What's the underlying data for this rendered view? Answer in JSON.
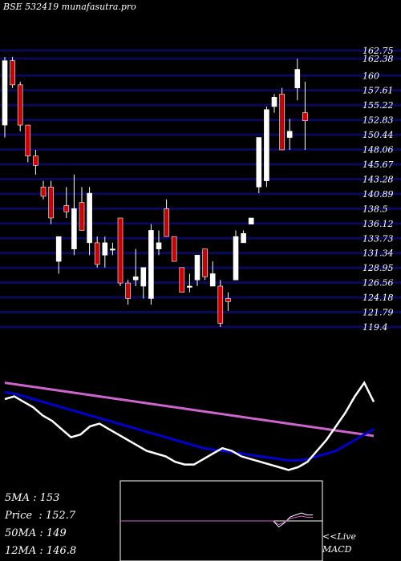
{
  "title": "BSE 532419 munafasutra.pro",
  "stats": [
    {
      "label": "5MA",
      "value": "153"
    },
    {
      "label": "Price",
      "value": "152.7"
    },
    {
      "label": "50MA",
      "value": "149"
    },
    {
      "label": "12MA",
      "value": "146.8"
    }
  ],
  "macd_label": "<<Live",
  "macd_sub": "MACD",
  "colors": {
    "up": "#ffffff",
    "down": "#cc0000",
    "grid": "#0a0a5a",
    "ma_long": "#cc66cc",
    "ma_mid": "#0000cc",
    "ma_short": "#ffffff"
  },
  "chart_data": {
    "type": "candlestick",
    "y_ticks": [
      "162.75",
      "162.38",
      "160",
      "157.61",
      "155.22",
      "152.83",
      "150.44",
      "148.06",
      "145.67",
      "143.28",
      "140.89",
      "138.5",
      "136.12",
      "133.73",
      "131.34",
      "128.95",
      "126.56",
      "124.18",
      "121.79",
      "119.4"
    ],
    "ylim": [
      119.4,
      162.75
    ],
    "candles": [
      {
        "o": 152,
        "h": 163,
        "l": 150,
        "c": 162.4
      },
      {
        "o": 162.4,
        "h": 163,
        "l": 158,
        "c": 158.5
      },
      {
        "o": 158.5,
        "h": 159,
        "l": 151,
        "c": 152
      },
      {
        "o": 152,
        "h": 152,
        "l": 146,
        "c": 147
      },
      {
        "o": 147,
        "h": 148,
        "l": 144,
        "c": 145.5
      },
      {
        "o": 142,
        "h": 143,
        "l": 140,
        "c": 140.5
      },
      {
        "o": 142,
        "h": 143,
        "l": 136,
        "c": 137
      },
      {
        "o": 130,
        "h": 134,
        "l": 128,
        "c": 134
      },
      {
        "o": 139,
        "h": 142,
        "l": 137,
        "c": 138
      },
      {
        "o": 132,
        "h": 144,
        "l": 131,
        "c": 138.5
      },
      {
        "o": 139.5,
        "h": 142,
        "l": 135,
        "c": 135
      },
      {
        "o": 133,
        "h": 142,
        "l": 131,
        "c": 141
      },
      {
        "o": 133,
        "h": 134,
        "l": 129,
        "c": 129.5
      },
      {
        "o": 131,
        "h": 134,
        "l": 129,
        "c": 133
      },
      {
        "o": 132,
        "h": 133,
        "l": 131,
        "c": 132
      },
      {
        "o": 137,
        "h": 137,
        "l": 126,
        "c": 126.5
      },
      {
        "o": 126.5,
        "h": 127,
        "l": 123,
        "c": 124
      },
      {
        "o": 127,
        "h": 132,
        "l": 126,
        "c": 127.5
      },
      {
        "o": 126,
        "h": 129,
        "l": 124,
        "c": 129
      },
      {
        "o": 124,
        "h": 136,
        "l": 123,
        "c": 135
      },
      {
        "o": 132,
        "h": 135,
        "l": 131,
        "c": 133
      },
      {
        "o": 138.5,
        "h": 140,
        "l": 134,
        "c": 134
      },
      {
        "o": 134,
        "h": 134,
        "l": 130,
        "c": 130
      },
      {
        "o": 129,
        "h": 129,
        "l": 125,
        "c": 125
      },
      {
        "o": 126,
        "h": 128,
        "l": 125,
        "c": 126
      },
      {
        "o": 127,
        "h": 131,
        "l": 126,
        "c": 131
      },
      {
        "o": 132,
        "h": 132,
        "l": 127,
        "c": 127.5
      },
      {
        "o": 126,
        "h": 130,
        "l": 126,
        "c": 128
      },
      {
        "o": 126,
        "h": 127,
        "l": 119.4,
        "c": 120
      },
      {
        "o": 124,
        "h": 125,
        "l": 122,
        "c": 123.5
      },
      {
        "o": 127,
        "h": 135,
        "l": 127,
        "c": 134
      },
      {
        "o": 133,
        "h": 135,
        "l": 133,
        "c": 134.5
      },
      {
        "o": 136,
        "h": 137,
        "l": 136,
        "c": 137
      },
      {
        "o": 142,
        "h": 150,
        "l": 141,
        "c": 150
      },
      {
        "o": 143,
        "h": 155,
        "l": 142,
        "c": 154.5
      },
      {
        "o": 155,
        "h": 157,
        "l": 154,
        "c": 156.5
      },
      {
        "o": 157,
        "h": 158,
        "l": 148,
        "c": 148
      },
      {
        "o": 150,
        "h": 153,
        "l": 148,
        "c": 151
      },
      {
        "o": 158,
        "h": 162.7,
        "l": 156,
        "c": 161
      },
      {
        "o": 154,
        "h": 159,
        "l": 148,
        "c": 152.7
      }
    ],
    "indicators": {
      "long_ma": [
        72,
        71,
        70,
        69,
        68,
        67,
        66,
        65,
        64,
        63,
        62,
        61,
        60,
        59,
        58,
        57,
        56,
        55,
        54,
        53,
        52,
        51,
        50,
        49,
        48,
        47,
        46,
        45,
        44,
        43,
        42,
        41,
        40,
        39,
        38,
        37,
        36,
        35,
        34,
        33
      ],
      "mid_ma": [
        65,
        64,
        62,
        60,
        58,
        56,
        54,
        52,
        50,
        48,
        46,
        44,
        42,
        40,
        38,
        36,
        34,
        32,
        30,
        28,
        26,
        24,
        23,
        22,
        21,
        20,
        19,
        18,
        17,
        16,
        15,
        15,
        16,
        18,
        20,
        22,
        26,
        30,
        34,
        38
      ],
      "short_ma": [
        60,
        62,
        58,
        54,
        48,
        44,
        38,
        32,
        34,
        40,
        42,
        38,
        34,
        30,
        26,
        22,
        20,
        18,
        14,
        12,
        12,
        16,
        20,
        24,
        22,
        18,
        16,
        14,
        12,
        10,
        8,
        10,
        14,
        22,
        30,
        40,
        50,
        62,
        72,
        58
      ]
    },
    "macd": [
      0,
      0,
      0,
      0,
      0,
      0,
      0,
      0,
      0,
      0,
      0,
      0,
      0,
      0,
      0,
      0,
      0,
      0,
      0,
      0,
      0,
      0,
      0,
      0,
      0,
      0,
      0,
      0,
      -3,
      -1,
      2,
      3,
      4,
      3,
      3
    ]
  }
}
